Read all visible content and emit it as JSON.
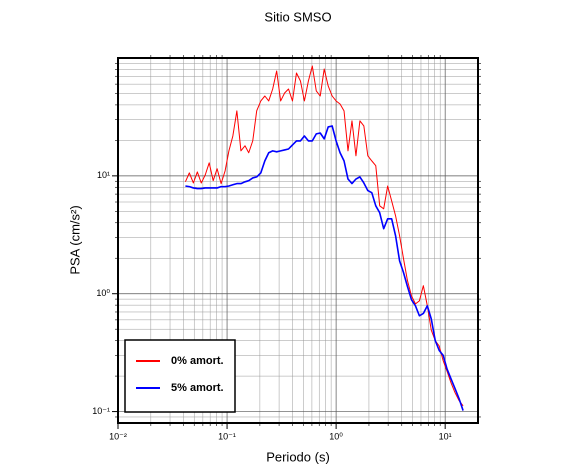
{
  "chart_data": {
    "type": "line",
    "title": "Sitio SMSO",
    "x_label": "Periodo (s)",
    "y_label": "PSA (cm/s²)",
    "x": [
      0.0415,
      0.0451,
      0.0491,
      0.0534,
      0.058,
      0.0631,
      0.0686,
      0.0746,
      0.0811,
      0.0882,
      0.0959,
      0.104,
      0.113,
      0.123,
      0.134,
      0.146,
      0.158,
      0.172,
      0.187,
      0.204,
      0.222,
      0.241,
      0.262,
      0.285,
      0.31,
      0.337,
      0.366,
      0.398,
      0.433,
      0.471,
      0.512,
      0.557,
      0.605,
      0.658,
      0.715,
      0.778,
      0.846,
      0.92,
      1.0,
      1.087,
      1.182,
      1.285,
      1.398,
      1.52,
      1.652,
      1.796,
      1.953,
      2.124,
      2.31,
      2.51,
      2.73,
      2.97,
      3.23,
      3.51,
      3.82,
      4.15,
      4.51,
      4.91,
      5.34,
      5.8,
      6.31,
      6.86,
      7.46,
      8.11,
      8.82,
      9.59,
      10.4,
      11.3,
      12.3,
      13.4,
      14.6
    ],
    "series": [
      {
        "name": "0% amort.",
        "color": "#ff0000",
        "width": 1,
        "values": [
          8.9,
          10.6,
          8.7,
          10.8,
          8.7,
          10.2,
          12.9,
          9.1,
          11.5,
          8.6,
          11.0,
          16.3,
          21.8,
          35.6,
          16.3,
          18.0,
          15.7,
          19.8,
          35.6,
          43.2,
          47.6,
          43.2,
          54.6,
          77.6,
          43.2,
          50.5,
          54.6,
          43.2,
          74.6,
          63.8,
          43.2,
          63.8,
          85.5,
          52.5,
          47.6,
          80.7,
          57.9,
          47.6,
          43.2,
          40.7,
          35.6,
          16.3,
          29.3,
          14.8,
          29.3,
          26.5,
          14.8,
          13.4,
          12.2,
          5.57,
          5.25,
          8.2,
          6.14,
          4.58,
          3.1,
          1.98,
          1.29,
          0.96,
          0.82,
          0.87,
          1.17,
          0.79,
          0.49,
          0.4,
          0.36,
          0.27,
          0.22,
          0.176,
          0.145,
          0.124,
          0.112
        ]
      },
      {
        "name": "5% amort.",
        "color": "#0000ff",
        "width": 1.6,
        "values": [
          8.2,
          8.1,
          7.9,
          7.8,
          7.8,
          7.9,
          7.9,
          7.9,
          7.9,
          8.1,
          8.1,
          8.2,
          8.4,
          8.6,
          8.6,
          8.9,
          9.1,
          9.6,
          9.8,
          10.6,
          13.4,
          15.7,
          16.3,
          16.0,
          16.3,
          16.6,
          16.9,
          18.3,
          19.8,
          19.8,
          21.8,
          19.8,
          19.8,
          22.7,
          23.1,
          20.6,
          26.0,
          26.5,
          19.8,
          15.7,
          13.4,
          9.4,
          8.6,
          9.4,
          9.8,
          8.7,
          7.5,
          7.2,
          5.57,
          4.86,
          3.56,
          4.32,
          4.32,
          3.1,
          1.9,
          1.51,
          1.15,
          0.89,
          0.79,
          0.65,
          0.68,
          0.79,
          0.61,
          0.4,
          0.33,
          0.3,
          0.23,
          0.19,
          0.157,
          0.129,
          0.102
        ]
      }
    ],
    "xlog": true,
    "ylog": true,
    "xlim": [
      0.01,
      20
    ],
    "ylim": [
      0.08,
      100
    ],
    "xticks": [
      {
        "value": 0.01,
        "label": "10⁻²"
      },
      {
        "value": 0.1,
        "label": "10⁻¹"
      },
      {
        "value": 1,
        "label": "10⁰"
      },
      {
        "value": 10,
        "label": "10¹"
      }
    ],
    "yticks": [
      {
        "value": 0.1,
        "label": "10⁻¹"
      },
      {
        "value": 1,
        "label": "10⁰"
      },
      {
        "value": 10,
        "label": "10¹"
      }
    ],
    "grid": true,
    "legend": "lower left"
  }
}
